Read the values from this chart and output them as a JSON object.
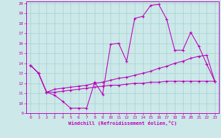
{
  "xlabel": "Windchill (Refroidissement éolien,°C)",
  "bg_color": "#cce8e8",
  "line_color": "#bb00bb",
  "grid_color": "#aad4d4",
  "hours": [
    0,
    1,
    2,
    3,
    4,
    5,
    6,
    7,
    8,
    9,
    10,
    11,
    12,
    13,
    14,
    15,
    16,
    17,
    18,
    19,
    20,
    21,
    22,
    23
  ],
  "line1": [
    13.8,
    13.0,
    11.1,
    10.8,
    10.2,
    9.5,
    9.5,
    9.5,
    12.1,
    10.9,
    15.9,
    16.0,
    14.2,
    18.5,
    18.7,
    19.8,
    19.9,
    18.4,
    15.3,
    15.3,
    17.1,
    15.7,
    13.9,
    12.2
  ],
  "line2": [
    13.8,
    13.0,
    11.1,
    11.4,
    11.5,
    11.6,
    11.7,
    11.8,
    12.0,
    12.1,
    12.3,
    12.5,
    12.6,
    12.8,
    13.0,
    13.2,
    13.5,
    13.7,
    14.0,
    14.2,
    14.5,
    14.7,
    14.8,
    12.2
  ],
  "line3": [
    13.8,
    13.0,
    11.1,
    11.1,
    11.2,
    11.3,
    11.4,
    11.5,
    11.6,
    11.7,
    11.8,
    11.8,
    11.9,
    12.0,
    12.0,
    12.1,
    12.1,
    12.2,
    12.2,
    12.2,
    12.2,
    12.2,
    12.2,
    12.2
  ],
  "ylim": [
    9,
    20
  ],
  "xlim": [
    -0.5,
    23.5
  ],
  "yticks": [
    9,
    10,
    11,
    12,
    13,
    14,
    15,
    16,
    17,
    18,
    19,
    20
  ],
  "xticks": [
    0,
    1,
    2,
    3,
    4,
    5,
    6,
    7,
    8,
    9,
    10,
    11,
    12,
    13,
    14,
    15,
    16,
    17,
    18,
    19,
    20,
    21,
    22,
    23
  ]
}
